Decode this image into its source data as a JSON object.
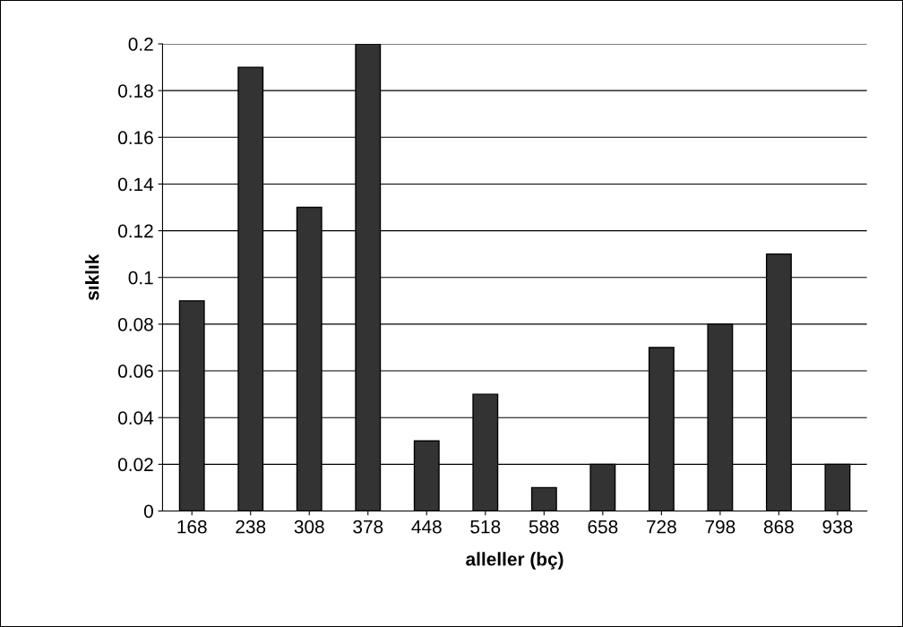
{
  "chart_data": {
    "type": "bar",
    "xlabel": "alleller (bç)",
    "ylabel": "sıklık",
    "categories": [
      "168",
      "238",
      "308",
      "378",
      "448",
      "518",
      "588",
      "658",
      "728",
      "798",
      "868",
      "938"
    ],
    "values": [
      0.09,
      0.19,
      0.13,
      0.2,
      0.03,
      0.05,
      0.01,
      0.02,
      0.07,
      0.08,
      0.11,
      0.02
    ],
    "color": "#333333",
    "ylim": [
      0,
      0.2
    ],
    "yticks": [
      0,
      0.02,
      0.04,
      0.06,
      0.08,
      0.1,
      0.12,
      0.14,
      0.16,
      0.18,
      0.2
    ],
    "grid": "y",
    "legend": false
  }
}
